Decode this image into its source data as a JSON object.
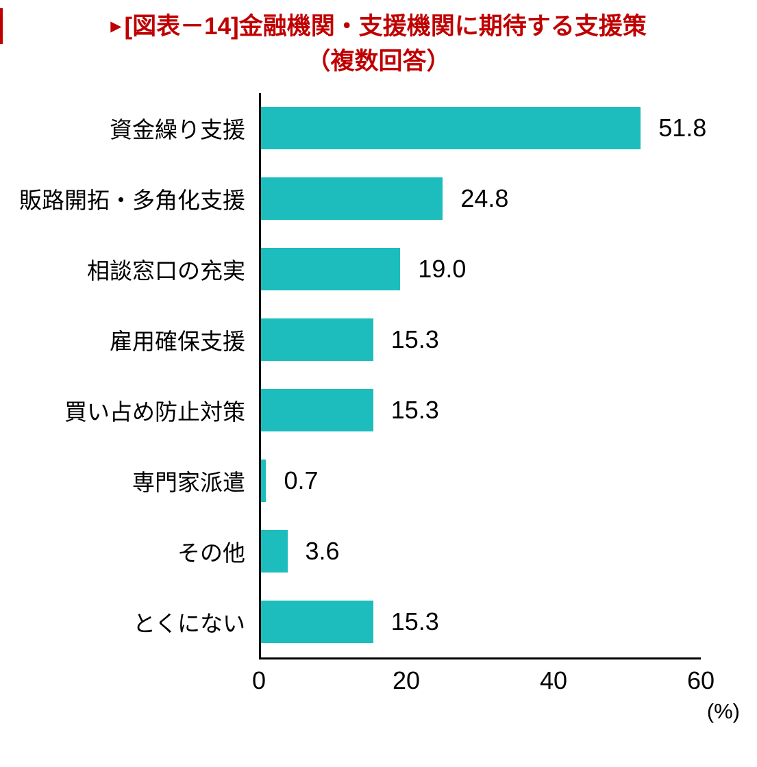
{
  "title": {
    "marker": "▶",
    "line1": "[図表－14]金融機関・支援機関に期待する支援策",
    "line2": "（複数回答）",
    "color": "#c00000"
  },
  "chart_data": {
    "type": "bar",
    "orientation": "horizontal",
    "title": "[図表－14]金融機関・支援機関に期待する支援策（複数回答）",
    "categories": [
      "資金繰り支援",
      "販路開拓・多角化支援",
      "相談窓口の充実",
      "雇用確保支援",
      "買い占め防止対策",
      "専門家派遣",
      "その他",
      "とくにない"
    ],
    "values": [
      51.8,
      24.8,
      19.0,
      15.3,
      15.3,
      0.7,
      3.6,
      15.3
    ],
    "value_labels": [
      "51.8",
      "24.8",
      "19.0",
      "15.3",
      "15.3",
      "0.7",
      "3.6",
      "15.3"
    ],
    "xlabel": "",
    "ylabel": "",
    "xlim": [
      0,
      60
    ],
    "x_ticks": [
      0,
      20,
      40,
      60
    ],
    "x_unit": "(%)",
    "grid": false,
    "legend": "none",
    "bar_color": "#1dbcbd",
    "axis_color": "#000000"
  }
}
